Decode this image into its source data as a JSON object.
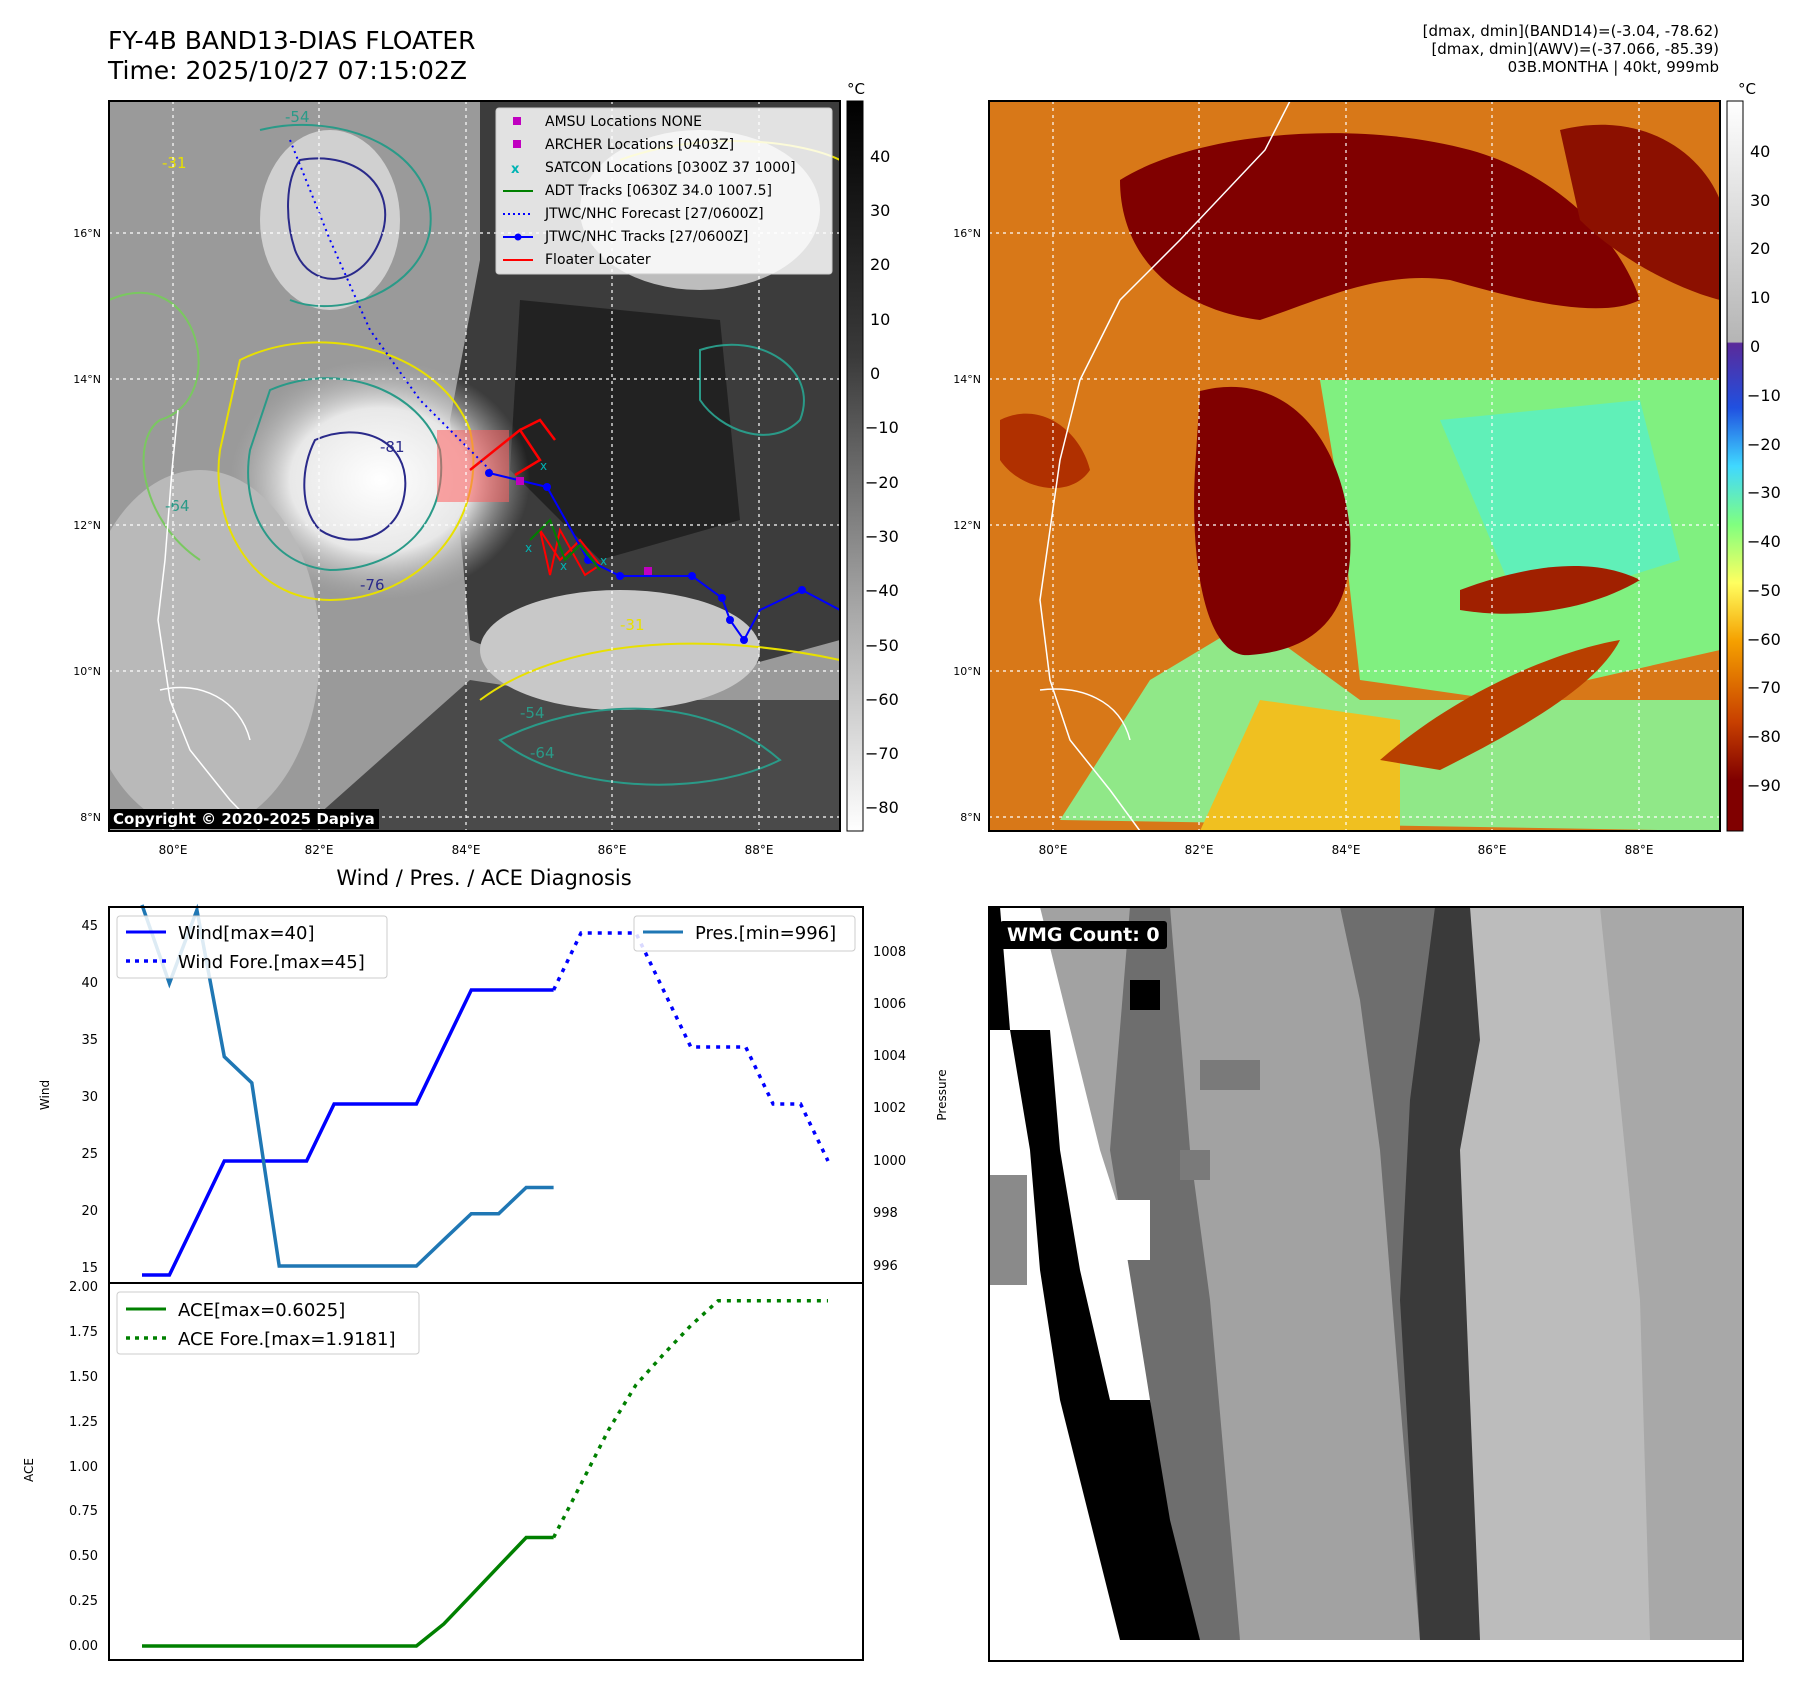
{
  "header": {
    "title_line1": "FY-4B BAND13-DIAS FLOATER",
    "title_line2": "Time: 2025/10/27 07:15:02Z",
    "right_line1": "[dmax, dmin](BAND14)=(-3.04, -78.62)",
    "right_line2": "[dmax, dmin](AWV)=(-37.066, -85.39)",
    "right_line3": "03B.MONTHA | 40kt, 999mb"
  },
  "map": {
    "lon_ticks": [
      "80°E",
      "82°E",
      "84°E",
      "86°E",
      "88°E"
    ],
    "lat_ticks": [
      "16°N",
      "14°N",
      "12°N",
      "10°N",
      "8°N"
    ],
    "contour_labels": [
      "-31",
      "-54",
      "-64",
      "-76",
      "-81"
    ],
    "copyright": "Copyright © 2020-2025 Dapiya",
    "legend": [
      {
        "label": "AMSU Locations NONE",
        "color": "#c000c0"
      },
      {
        "label": "ARCHER Locations [0403Z]",
        "color": "#c000c0"
      },
      {
        "label": "SATCON Locations [0300Z 37 1000]",
        "color": "#00b4b4"
      },
      {
        "label": "ADT Tracks [0630Z 34.0 1007.5]",
        "color": "#008000"
      },
      {
        "label": "JTWC/NHC Forecast [27/0600Z]",
        "color": "#0000ff"
      },
      {
        "label": "JTWC/NHC Tracks [27/0600Z]",
        "color": "#0000ff"
      },
      {
        "label": "Floater Locater",
        "color": "#ff0000"
      }
    ]
  },
  "colorbar_left": {
    "unit": "°C",
    "ticks": [
      "40",
      "30",
      "20",
      "10",
      "0",
      "−10",
      "−20",
      "−30",
      "−40",
      "−50",
      "−60",
      "−70",
      "−80"
    ]
  },
  "colorbar_right": {
    "unit": "°C",
    "ticks": [
      "40",
      "30",
      "20",
      "10",
      "0",
      "−10",
      "−20",
      "−30",
      "−40",
      "−50",
      "−60",
      "−70",
      "−80",
      "−90"
    ]
  },
  "wmg": {
    "label": "WMG Count: 0"
  },
  "colors": {
    "wind": "#0000ff",
    "pressure": "#1f77b4",
    "ace": "#008000",
    "floater": "#ff0000"
  },
  "chart_data": [
    {
      "type": "line",
      "title": "Wind / Pres. / ACE Diagnosis",
      "ylabel": "Wind",
      "ylim": [
        15,
        45.5
      ],
      "yticks": [
        "45",
        "40",
        "35",
        "30",
        "25",
        "20",
        "15"
      ],
      "x": [
        0,
        1,
        2,
        3,
        4,
        5,
        6,
        7,
        8,
        9,
        10,
        11,
        12,
        13,
        14,
        15
      ],
      "series": [
        {
          "name": "Wind[max=40]",
          "style": "solid",
          "values": [
            15,
            15,
            20,
            25,
            25,
            25,
            25,
            30,
            30,
            30,
            30,
            35,
            40,
            40,
            40,
            40
          ]
        },
        {
          "name": "Wind Fore.[max=45]",
          "style": "dotted",
          "x": [
            15,
            16,
            17,
            18,
            19,
            20,
            21,
            22,
            23,
            24,
            25
          ],
          "values": [
            40,
            45,
            45,
            45,
            40,
            35,
            35,
            35,
            30,
            30,
            25
          ]
        }
      ]
    },
    {
      "type": "line",
      "ylabel": "Pressure",
      "ylim": [
        995.8,
        1009.8
      ],
      "yticks": [
        "1008",
        "1006",
        "1004",
        "1002",
        "1000",
        "998",
        "996"
      ],
      "series": [
        {
          "name": "Pres.[min=996]",
          "style": "solid",
          "x": [
            0,
            1,
            2,
            3,
            4,
            5,
            6,
            7,
            8,
            9,
            10,
            11,
            12,
            13,
            14,
            15
          ],
          "values": [
            1009.8,
            1006.8,
            1009.6,
            1004,
            1003,
            996,
            996,
            996,
            996,
            996,
            996,
            997,
            998,
            998,
            999,
            999
          ]
        }
      ]
    },
    {
      "type": "line",
      "ylabel": "ACE",
      "ylim": [
        -0.1,
        2.0
      ],
      "yticks": [
        "2.00",
        "1.75",
        "1.50",
        "1.25",
        "1.00",
        "0.75",
        "0.50",
        "0.25",
        "0.00"
      ],
      "series": [
        {
          "name": "ACE[max=0.6025]",
          "style": "solid",
          "x": [
            0,
            1,
            2,
            3,
            4,
            5,
            6,
            7,
            8,
            9,
            10,
            11,
            12,
            13,
            14,
            15
          ],
          "values": [
            0,
            0,
            0,
            0,
            0,
            0,
            0,
            0,
            0,
            0,
            0,
            0.1225,
            0.2825,
            0.4425,
            0.6025,
            0.6025
          ]
        },
        {
          "name": "ACE Fore.[max=1.9181]",
          "style": "dotted",
          "x": [
            15,
            16,
            17,
            18,
            19,
            20,
            21,
            22,
            23,
            24,
            25
          ],
          "values": [
            0.6025,
            0.9,
            1.2,
            1.45,
            1.62,
            1.78,
            1.9181,
            1.9181,
            1.9181,
            1.9181,
            1.9181
          ]
        }
      ]
    }
  ]
}
